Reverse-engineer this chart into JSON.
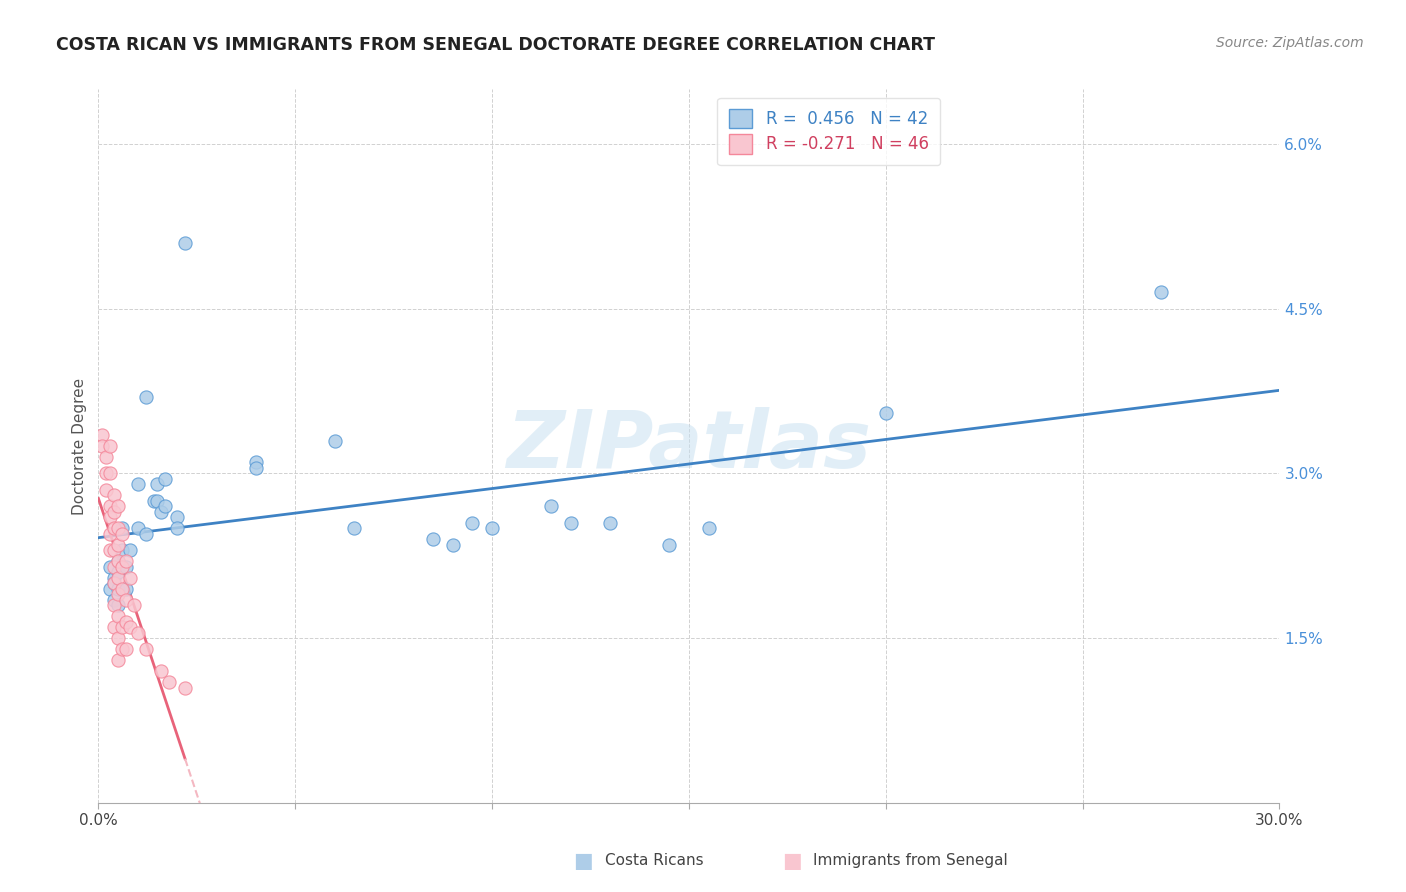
{
  "title": "COSTA RICAN VS IMMIGRANTS FROM SENEGAL DOCTORATE DEGREE CORRELATION CHART",
  "source": "Source: ZipAtlas.com",
  "ylabel": "Doctorate Degree",
  "xlim": [
    0.0,
    0.3
  ],
  "ylim": [
    0.0,
    0.065
  ],
  "xticks": [
    0.0,
    0.05,
    0.1,
    0.15,
    0.2,
    0.25,
    0.3
  ],
  "xticklabels": [
    "0.0%",
    "",
    "",
    "",
    "",
    "",
    "30.0%"
  ],
  "yticks": [
    0.0,
    0.015,
    0.03,
    0.045,
    0.06
  ],
  "yticklabels": [
    "",
    "1.5%",
    "3.0%",
    "4.5%",
    "6.0%"
  ],
  "color_blue_fill": "#aecde8",
  "color_blue_edge": "#5b9bd5",
  "color_pink_fill": "#f9c6d0",
  "color_pink_edge": "#f4879a",
  "color_blue_line": "#3e82c4",
  "color_pink_line": "#e8637a",
  "color_pink_dash": "#f4b8c2",
  "watermark": "ZIPatlas",
  "blue_points": [
    [
      0.003,
      0.0215
    ],
    [
      0.003,
      0.0195
    ],
    [
      0.004,
      0.0205
    ],
    [
      0.004,
      0.0185
    ],
    [
      0.004,
      0.02
    ],
    [
      0.005,
      0.022
    ],
    [
      0.005,
      0.0195
    ],
    [
      0.005,
      0.021
    ],
    [
      0.005,
      0.018
    ],
    [
      0.006,
      0.023
    ],
    [
      0.006,
      0.025
    ],
    [
      0.007,
      0.0215
    ],
    [
      0.007,
      0.0195
    ],
    [
      0.008,
      0.023
    ],
    [
      0.01,
      0.029
    ],
    [
      0.01,
      0.025
    ],
    [
      0.012,
      0.037
    ],
    [
      0.012,
      0.0245
    ],
    [
      0.014,
      0.0275
    ],
    [
      0.015,
      0.0275
    ],
    [
      0.015,
      0.029
    ],
    [
      0.016,
      0.0265
    ],
    [
      0.017,
      0.0295
    ],
    [
      0.017,
      0.027
    ],
    [
      0.02,
      0.026
    ],
    [
      0.02,
      0.025
    ],
    [
      0.022,
      0.051
    ],
    [
      0.04,
      0.031
    ],
    [
      0.04,
      0.0305
    ],
    [
      0.06,
      0.033
    ],
    [
      0.065,
      0.025
    ],
    [
      0.085,
      0.024
    ],
    [
      0.09,
      0.0235
    ],
    [
      0.095,
      0.0255
    ],
    [
      0.1,
      0.025
    ],
    [
      0.115,
      0.027
    ],
    [
      0.12,
      0.0255
    ],
    [
      0.13,
      0.0255
    ],
    [
      0.145,
      0.0235
    ],
    [
      0.155,
      0.025
    ],
    [
      0.2,
      0.0355
    ],
    [
      0.27,
      0.0465
    ]
  ],
  "pink_points": [
    [
      0.001,
      0.0335
    ],
    [
      0.001,
      0.0325
    ],
    [
      0.002,
      0.0315
    ],
    [
      0.002,
      0.03
    ],
    [
      0.002,
      0.0285
    ],
    [
      0.003,
      0.0325
    ],
    [
      0.003,
      0.03
    ],
    [
      0.003,
      0.027
    ],
    [
      0.003,
      0.026
    ],
    [
      0.003,
      0.0245
    ],
    [
      0.003,
      0.023
    ],
    [
      0.004,
      0.028
    ],
    [
      0.004,
      0.0265
    ],
    [
      0.004,
      0.025
    ],
    [
      0.004,
      0.023
    ],
    [
      0.004,
      0.0215
    ],
    [
      0.004,
      0.02
    ],
    [
      0.004,
      0.018
    ],
    [
      0.004,
      0.016
    ],
    [
      0.005,
      0.027
    ],
    [
      0.005,
      0.025
    ],
    [
      0.005,
      0.0235
    ],
    [
      0.005,
      0.022
    ],
    [
      0.005,
      0.0205
    ],
    [
      0.005,
      0.019
    ],
    [
      0.005,
      0.017
    ],
    [
      0.005,
      0.015
    ],
    [
      0.005,
      0.013
    ],
    [
      0.006,
      0.0245
    ],
    [
      0.006,
      0.0215
    ],
    [
      0.006,
      0.0195
    ],
    [
      0.006,
      0.016
    ],
    [
      0.006,
      0.014
    ],
    [
      0.007,
      0.022
    ],
    [
      0.007,
      0.0185
    ],
    [
      0.007,
      0.0165
    ],
    [
      0.007,
      0.014
    ],
    [
      0.008,
      0.0205
    ],
    [
      0.008,
      0.016
    ],
    [
      0.009,
      0.018
    ],
    [
      0.01,
      0.0155
    ],
    [
      0.012,
      0.014
    ],
    [
      0.016,
      0.012
    ],
    [
      0.018,
      0.011
    ],
    [
      0.022,
      0.0105
    ]
  ]
}
